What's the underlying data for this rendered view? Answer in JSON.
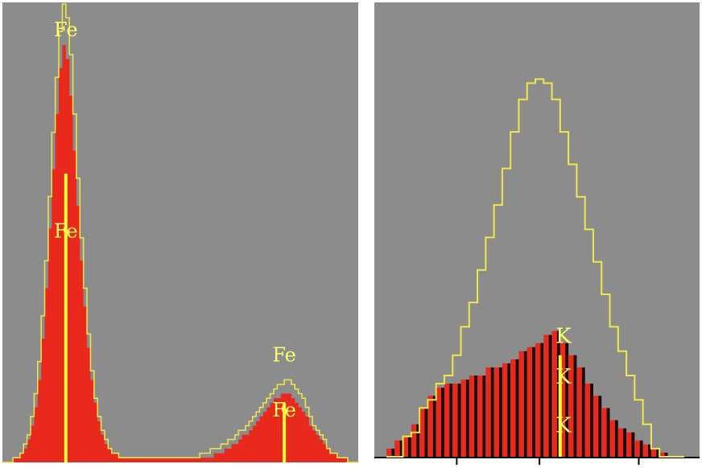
{
  "chart_data": [
    {
      "type": "area",
      "panel": "left",
      "x": [
        0,
        1,
        2,
        3,
        4,
        5,
        6,
        7,
        8,
        9,
        10,
        11,
        12,
        13,
        14,
        15,
        16,
        17,
        18,
        19,
        20,
        21,
        22,
        23,
        24,
        25,
        26,
        27,
        28,
        29,
        30,
        31,
        32,
        33,
        34,
        35,
        36,
        37,
        38,
        39,
        40,
        41,
        42,
        43,
        44,
        45,
        46,
        47,
        48,
        49,
        50,
        51,
        52,
        53,
        54,
        55,
        56,
        57,
        58,
        59,
        60,
        61,
        62,
        63,
        64,
        65,
        66,
        67,
        68,
        69,
        70,
        71,
        72,
        73,
        74,
        75,
        76,
        77,
        78,
        79,
        80,
        81,
        82,
        83,
        84,
        85,
        86,
        87,
        88,
        89,
        90,
        91,
        92,
        93,
        94,
        95,
        96,
        97,
        98,
        99,
        100
      ],
      "series": [
        {
          "style": "filled",
          "color": "#e8291c",
          "values": [
            0,
            0,
            0,
            1,
            1,
            2,
            3,
            5,
            8,
            12,
            18,
            27,
            38,
            51,
            64,
            76,
            86,
            91,
            88,
            80,
            68,
            56,
            44,
            34,
            25,
            18,
            13,
            9,
            6,
            4,
            3,
            2,
            2,
            1,
            1,
            1,
            1,
            1,
            1,
            1,
            1,
            1,
            1,
            1,
            1,
            1,
            1,
            1,
            1,
            1,
            1,
            1,
            1,
            1,
            1,
            1,
            1,
            1,
            1,
            1,
            2,
            2,
            2,
            3,
            3,
            4,
            4,
            5,
            6,
            6,
            7,
            8,
            9,
            10,
            11,
            12,
            13,
            14,
            14,
            15,
            15,
            15,
            14,
            13,
            12,
            11,
            10,
            8,
            7,
            6,
            5,
            4,
            3,
            2,
            2,
            1,
            1,
            1,
            0,
            0,
            0
          ]
        },
        {
          "style": "outline",
          "color": "#f0e84a",
          "values": [
            0,
            0,
            0,
            1,
            1,
            2,
            4,
            6,
            10,
            15,
            22,
            32,
            44,
            58,
            72,
            84,
            94,
            100,
            97,
            89,
            76,
            62,
            49,
            38,
            28,
            20,
            14,
            10,
            7,
            5,
            3,
            2,
            2,
            1,
            1,
            1,
            1,
            1,
            1,
            1,
            1,
            1,
            1,
            1,
            1,
            1,
            1,
            1,
            1,
            1,
            1,
            1,
            1,
            1,
            1,
            1,
            2,
            2,
            2,
            3,
            3,
            3,
            4,
            4,
            5,
            5,
            6,
            7,
            7,
            8,
            9,
            10,
            11,
            12,
            13,
            14,
            15,
            16,
            17,
            17,
            18,
            18,
            17,
            16,
            15,
            14,
            12,
            10,
            8,
            7,
            6,
            5,
            3,
            2,
            2,
            1,
            1,
            1,
            0,
            0,
            0
          ]
        }
      ],
      "markers": [
        {
          "x": 17.5,
          "value": 63
        },
        {
          "x": 79.5,
          "value": 13
        }
      ],
      "annotations": [
        {
          "text": "Fe",
          "x": 17.5,
          "value": 93
        },
        {
          "text": "Fe",
          "x": 17.5,
          "value": 49
        },
        {
          "text": "Fe",
          "x": 79.5,
          "value": 22
        },
        {
          "text": "Fe",
          "x": 79.5,
          "value": 10
        }
      ],
      "ylim": [
        0,
        100
      ]
    },
    {
      "type": "bar",
      "panel": "right",
      "x": [
        0,
        1,
        2,
        3,
        4,
        5,
        6,
        7,
        8,
        9,
        10,
        11,
        12,
        13,
        14,
        15,
        16,
        17,
        18,
        19,
        20,
        21,
        22,
        23,
        24,
        25,
        26,
        27,
        28,
        29,
        30,
        31,
        32,
        33,
        34,
        35
      ],
      "series": [
        {
          "style": "bars",
          "color": "#e8291c",
          "values": [
            2,
            4,
            5,
            8,
            12,
            15,
            17,
            18,
            18,
            19,
            20,
            20,
            22,
            22,
            23,
            24,
            26,
            27,
            28,
            30,
            31,
            28,
            25,
            22,
            18,
            15,
            12,
            9,
            7,
            6,
            4,
            3,
            2,
            1,
            0,
            0
          ]
        },
        {
          "style": "outline",
          "color": "#f0e84a",
          "values": [
            0,
            0,
            5,
            6,
            12,
            14,
            18,
            20,
            25,
            32,
            38,
            46,
            54,
            62,
            71,
            80,
            88,
            92,
            93,
            92,
            88,
            80,
            72,
            64,
            56,
            48,
            40,
            32,
            26,
            20,
            14,
            8,
            2,
            0,
            0,
            0
          ]
        }
      ],
      "markers": [
        {
          "x": 20.5,
          "value": 25
        }
      ],
      "annotations": [
        {
          "text": "K",
          "x": 20.5,
          "value": 28
        },
        {
          "text": "K",
          "x": 20.5,
          "value": 18
        },
        {
          "text": "K",
          "x": 20.5,
          "value": 6
        }
      ],
      "xticks": [
        8,
        18,
        30
      ],
      "ylim": [
        0,
        100
      ]
    }
  ]
}
